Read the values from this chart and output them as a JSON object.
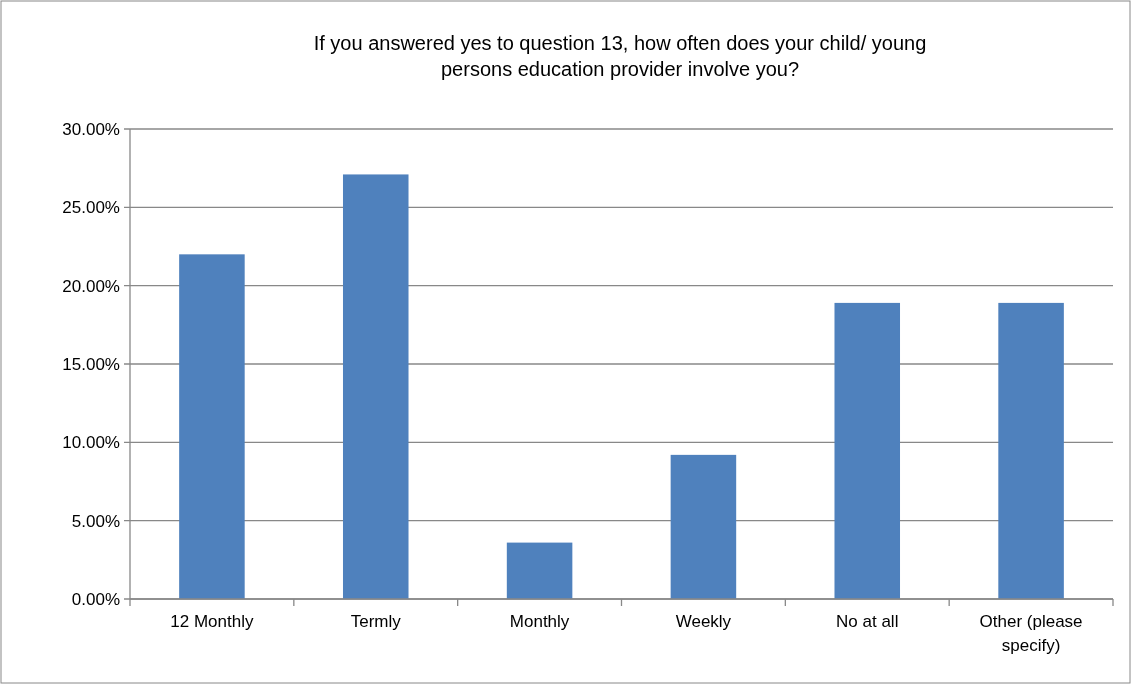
{
  "chart_data": {
    "type": "bar",
    "title": "If you answered yes to question 13, how often does your child/ young persons education provider involve you?",
    "categories": [
      "12 Monthly",
      "Termly",
      "Monthly",
      "Weekly",
      "No at all",
      "Other (please specify)"
    ],
    "values": [
      22.0,
      27.1,
      3.6,
      9.2,
      18.9,
      18.9
    ],
    "color": "#4f81bd",
    "ylim": [
      0,
      30
    ],
    "yticks": [
      {
        "value": 0,
        "label": "0.00%"
      },
      {
        "value": 5,
        "label": "5.00%"
      },
      {
        "value": 10,
        "label": "10.00%"
      },
      {
        "value": 15,
        "label": "15.00%"
      },
      {
        "value": 20,
        "label": "20.00%"
      },
      {
        "value": 25,
        "label": "25.00%"
      },
      {
        "value": 30,
        "label": "30.00%"
      }
    ],
    "grid": "y"
  }
}
